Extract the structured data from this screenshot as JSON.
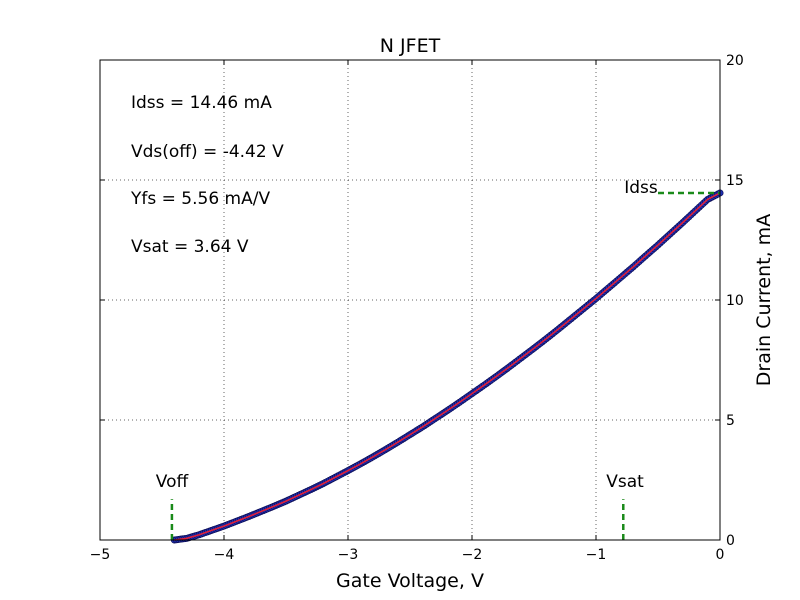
{
  "chart_data": {
    "type": "line",
    "title": "N JFET",
    "xlabel": "Gate Voltage, V",
    "ylabel": "Drain Current, mA",
    "xlim": [
      -5,
      0
    ],
    "ylim": [
      0,
      20
    ],
    "x_ticks": [
      -5,
      -4,
      -3,
      -2,
      -1,
      0
    ],
    "x_tick_labels": [
      "−5",
      "−4",
      "−3",
      "−2",
      "−1",
      "0"
    ],
    "y_ticks": [
      0,
      5,
      10,
      15,
      20
    ],
    "y_tick_labels": [
      "0",
      "5",
      "10",
      "15",
      "20"
    ],
    "y_axis_side": "right",
    "grid": true,
    "series": [
      {
        "kind": "scatter+fit",
        "marker_color": "#1f2fb0",
        "line_color": "#e0203a",
        "x": [
          -4.4,
          -4.3,
          -4.2,
          -4.1,
          -4.0,
          -3.9,
          -3.8,
          -3.7,
          -3.6,
          -3.5,
          -3.4,
          -3.3,
          -3.2,
          -3.1,
          -3.0,
          -2.9,
          -2.8,
          -2.7,
          -2.6,
          -2.5,
          -2.4,
          -2.3,
          -2.2,
          -2.1,
          -2.0,
          -1.9,
          -1.8,
          -1.7,
          -1.6,
          -1.5,
          -1.4,
          -1.3,
          -1.2,
          -1.1,
          -1.0,
          -0.9,
          -0.8,
          -0.7,
          -0.6,
          -0.5,
          -0.4,
          -0.3,
          -0.2,
          -0.1,
          0.0
        ],
        "y": [
          0.0,
          0.07,
          0.22,
          0.4,
          0.58,
          0.78,
          0.98,
          1.19,
          1.4,
          1.62,
          1.86,
          2.1,
          2.35,
          2.62,
          2.89,
          3.17,
          3.46,
          3.76,
          4.07,
          4.39,
          4.71,
          5.05,
          5.39,
          5.74,
          6.1,
          6.46,
          6.83,
          7.21,
          7.6,
          7.99,
          8.39,
          8.8,
          9.22,
          9.64,
          10.06,
          10.5,
          10.94,
          11.38,
          11.84,
          12.29,
          12.76,
          13.23,
          13.71,
          14.19,
          14.46
        ]
      }
    ],
    "annotations": {
      "stats": [
        "Idss = 14.46 mA",
        "Vds(off) = -4.42 V",
        "Yfs = 5.56 mA/V",
        "Vsat = 3.64 V"
      ],
      "markers": [
        {
          "label": "Voff",
          "x": -4.42,
          "y_from": 0,
          "y_to": 1.7,
          "orientation": "vertical",
          "color": "#1a8a1a"
        },
        {
          "label": "Vsat",
          "x": -0.78,
          "y_from": 0,
          "y_to": 1.7,
          "orientation": "vertical",
          "color": "#1a8a1a"
        },
        {
          "label": "Idss",
          "y": 14.46,
          "x_from": -0.5,
          "x_to": 0,
          "orientation": "horizontal",
          "color": "#1a8a1a"
        }
      ]
    }
  }
}
